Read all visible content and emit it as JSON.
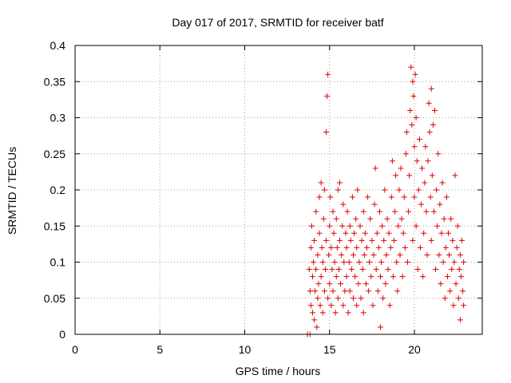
{
  "chart_data": {
    "type": "scatter",
    "title": "Day 017 of 2017, SRMTID for receiver batf",
    "xlabel": "GPS time / hours",
    "ylabel": "SRMTID / TECUs",
    "xlim": [
      0,
      24
    ],
    "ylim": [
      0,
      0.4
    ],
    "xticks": [
      0,
      5,
      10,
      15,
      20
    ],
    "yticks": [
      0,
      0.05,
      0.1,
      0.15,
      0.2,
      0.25,
      0.3,
      0.35,
      0.4
    ],
    "xtick_labels": [
      "0",
      "5",
      "10",
      "15",
      "20"
    ],
    "ytick_labels": [
      "0",
      "0.05",
      "0.1",
      "0.15",
      "0.2",
      "0.25",
      "0.3",
      "0.35",
      "0.4"
    ],
    "grid": true,
    "marker": "+",
    "color": "#e00000",
    "series": [
      {
        "name": "SRMTID",
        "points": [
          [
            13.7,
            0.0
          ],
          [
            13.85,
            0.0
          ],
          [
            13.8,
            0.09
          ],
          [
            13.85,
            0.06
          ],
          [
            13.9,
            0.04
          ],
          [
            13.9,
            0.12
          ],
          [
            13.95,
            0.15
          ],
          [
            14.0,
            0.03
          ],
          [
            14.0,
            0.08
          ],
          [
            14.05,
            0.1
          ],
          [
            14.1,
            0.02
          ],
          [
            14.1,
            0.13
          ],
          [
            14.15,
            0.06
          ],
          [
            14.2,
            0.09
          ],
          [
            14.2,
            0.17
          ],
          [
            14.25,
            0.01
          ],
          [
            14.3,
            0.05
          ],
          [
            14.3,
            0.11
          ],
          [
            14.35,
            0.07
          ],
          [
            14.4,
            0.14
          ],
          [
            14.4,
            0.19
          ],
          [
            14.45,
            0.04
          ],
          [
            14.5,
            0.08
          ],
          [
            14.5,
            0.21
          ],
          [
            14.55,
            0.12
          ],
          [
            14.6,
            0.03
          ],
          [
            14.6,
            0.1
          ],
          [
            14.65,
            0.16
          ],
          [
            14.7,
            0.06
          ],
          [
            14.7,
            0.2
          ],
          [
            14.75,
            0.09
          ],
          [
            14.8,
            0.13
          ],
          [
            14.8,
            0.28
          ],
          [
            14.85,
            0.33
          ],
          [
            14.9,
            0.36
          ],
          [
            14.9,
            0.05
          ],
          [
            14.95,
            0.11
          ],
          [
            15.0,
            0.07
          ],
          [
            15.0,
            0.15
          ],
          [
            15.05,
            0.19
          ],
          [
            15.1,
            0.04
          ],
          [
            15.1,
            0.12
          ],
          [
            15.15,
            0.09
          ],
          [
            15.2,
            0.17
          ],
          [
            15.2,
            0.06
          ],
          [
            15.25,
            0.14
          ],
          [
            15.3,
            0.1
          ],
          [
            15.35,
            0.03
          ],
          [
            15.4,
            0.08
          ],
          [
            15.4,
            0.16
          ],
          [
            15.45,
            0.12
          ],
          [
            15.5,
            0.05
          ],
          [
            15.5,
            0.2
          ],
          [
            15.55,
            0.09
          ],
          [
            15.6,
            0.13
          ],
          [
            15.6,
            0.21
          ],
          [
            15.65,
            0.07
          ],
          [
            15.7,
            0.11
          ],
          [
            15.75,
            0.15
          ],
          [
            15.8,
            0.04
          ],
          [
            15.8,
            0.18
          ],
          [
            15.85,
            0.1
          ],
          [
            15.9,
            0.06
          ],
          [
            15.95,
            0.14
          ],
          [
            16.0,
            0.08
          ],
          [
            16.0,
            0.12
          ],
          [
            16.05,
            0.17
          ],
          [
            16.1,
            0.03
          ],
          [
            16.15,
            0.1
          ],
          [
            16.2,
            0.15
          ],
          [
            16.2,
            0.06
          ],
          [
            16.25,
            0.13
          ],
          [
            16.3,
            0.09
          ],
          [
            16.35,
            0.19
          ],
          [
            16.4,
            0.05
          ],
          [
            16.4,
            0.11
          ],
          [
            16.45,
            0.14
          ],
          [
            16.5,
            0.08
          ],
          [
            16.55,
            0.16
          ],
          [
            16.6,
            0.04
          ],
          [
            16.6,
            0.12
          ],
          [
            16.65,
            0.2
          ],
          [
            16.7,
            0.07
          ],
          [
            16.75,
            0.1
          ],
          [
            16.8,
            0.15
          ],
          [
            16.85,
            0.05
          ],
          [
            16.9,
            0.13
          ],
          [
            16.95,
            0.09
          ],
          [
            17.0,
            0.17
          ],
          [
            17.0,
            0.03
          ],
          [
            17.05,
            0.11
          ],
          [
            17.1,
            0.14
          ],
          [
            17.15,
            0.07
          ],
          [
            17.2,
            0.12
          ],
          [
            17.25,
            0.19
          ],
          [
            17.3,
            0.06
          ],
          [
            17.35,
            0.1
          ],
          [
            17.4,
            0.16
          ],
          [
            17.45,
            0.08
          ],
          [
            17.5,
            0.13
          ],
          [
            17.55,
            0.04
          ],
          [
            17.6,
            0.11
          ],
          [
            17.65,
            0.18
          ],
          [
            17.7,
            0.23
          ],
          [
            17.75,
            0.09
          ],
          [
            17.8,
            0.14
          ],
          [
            17.85,
            0.06
          ],
          [
            17.9,
            0.12
          ],
          [
            17.95,
            0.17
          ],
          [
            18.0,
            0.01
          ],
          [
            18.0,
            0.08
          ],
          [
            18.05,
            0.1
          ],
          [
            18.1,
            0.15
          ],
          [
            18.15,
            0.05
          ],
          [
            18.2,
            0.13
          ],
          [
            18.25,
            0.2
          ],
          [
            18.3,
            0.07
          ],
          [
            18.35,
            0.11
          ],
          [
            18.4,
            0.16
          ],
          [
            18.45,
            0.09
          ],
          [
            18.5,
            0.14
          ],
          [
            18.55,
            0.04
          ],
          [
            18.6,
            0.12
          ],
          [
            18.65,
            0.19
          ],
          [
            18.7,
            0.24
          ],
          [
            18.75,
            0.08
          ],
          [
            18.8,
            0.13
          ],
          [
            18.85,
            0.17
          ],
          [
            18.9,
            0.22
          ],
          [
            18.95,
            0.1
          ],
          [
            19.0,
            0.06
          ],
          [
            19.05,
            0.15
          ],
          [
            19.1,
            0.2
          ],
          [
            19.15,
            0.11
          ],
          [
            19.2,
            0.23
          ],
          [
            19.25,
            0.16
          ],
          [
            19.3,
            0.08
          ],
          [
            19.35,
            0.14
          ],
          [
            19.4,
            0.19
          ],
          [
            19.45,
            0.12
          ],
          [
            19.5,
            0.25
          ],
          [
            19.55,
            0.28
          ],
          [
            19.6,
            0.1
          ],
          [
            19.65,
            0.17
          ],
          [
            19.7,
            0.22
          ],
          [
            19.75,
            0.31
          ],
          [
            19.8,
            0.37
          ],
          [
            19.85,
            0.29
          ],
          [
            19.9,
            0.35
          ],
          [
            19.9,
            0.13
          ],
          [
            19.95,
            0.33
          ],
          [
            20.0,
            0.26
          ],
          [
            20.0,
            0.19
          ],
          [
            20.05,
            0.36
          ],
          [
            20.1,
            0.3
          ],
          [
            20.1,
            0.15
          ],
          [
            20.15,
            0.24
          ],
          [
            20.2,
            0.09
          ],
          [
            20.25,
            0.2
          ],
          [
            20.3,
            0.27
          ],
          [
            20.35,
            0.12
          ],
          [
            20.4,
            0.18
          ],
          [
            20.45,
            0.23
          ],
          [
            20.5,
            0.08
          ],
          [
            20.55,
            0.14
          ],
          [
            20.6,
            0.21
          ],
          [
            20.65,
            0.26
          ],
          [
            20.7,
            0.17
          ],
          [
            20.75,
            0.11
          ],
          [
            20.8,
            0.24
          ],
          [
            20.85,
            0.32
          ],
          [
            20.9,
            0.28
          ],
          [
            20.95,
            0.19
          ],
          [
            21.0,
            0.34
          ],
          [
            21.0,
            0.13
          ],
          [
            21.05,
            0.22
          ],
          [
            21.1,
            0.29
          ],
          [
            21.15,
            0.17
          ],
          [
            21.2,
            0.31
          ],
          [
            21.25,
            0.09
          ],
          [
            21.3,
            0.2
          ],
          [
            21.35,
            0.15
          ],
          [
            21.4,
            0.25
          ],
          [
            21.45,
            0.11
          ],
          [
            21.5,
            0.18
          ],
          [
            21.55,
            0.07
          ],
          [
            21.6,
            0.14
          ],
          [
            21.65,
            0.21
          ],
          [
            21.7,
            0.1
          ],
          [
            21.75,
            0.16
          ],
          [
            21.8,
            0.05
          ],
          [
            21.85,
            0.12
          ],
          [
            21.9,
            0.19
          ],
          [
            21.95,
            0.08
          ],
          [
            22.0,
            0.14
          ],
          [
            22.05,
            0.11
          ],
          [
            22.1,
            0.06
          ],
          [
            22.15,
            0.16
          ],
          [
            22.2,
            0.09
          ],
          [
            22.25,
            0.13
          ],
          [
            22.3,
            0.04
          ],
          [
            22.35,
            0.1
          ],
          [
            22.4,
            0.22
          ],
          [
            22.45,
            0.07
          ],
          [
            22.5,
            0.12
          ],
          [
            22.55,
            0.15
          ],
          [
            22.6,
            0.05
          ],
          [
            22.65,
            0.09
          ],
          [
            22.7,
            0.02
          ],
          [
            22.7,
            0.11
          ],
          [
            22.75,
            0.08
          ],
          [
            22.8,
            0.13
          ],
          [
            22.85,
            0.06
          ],
          [
            22.9,
            0.04
          ],
          [
            22.9,
            0.1
          ]
        ]
      }
    ]
  }
}
